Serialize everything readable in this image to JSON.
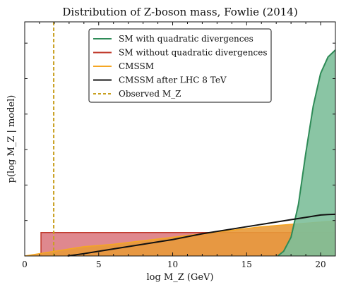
{
  "chart_data": {
    "type": "area",
    "title": "Distribution of Z-boson mass, Fowlie (2014)",
    "xlabel": "log M_Z (GeV)",
    "ylabel": "p(log M_Z | model)",
    "xlim": [
      0,
      21
    ],
    "ylim": [
      0,
      1.0
    ],
    "x_ticks": [
      "0",
      "5",
      "10",
      "15",
      "20"
    ],
    "legend_position": "top-center",
    "grid": false,
    "series": [
      {
        "name": "SM with quadratic divergences",
        "kind": "filled-area",
        "color": "#2e8b57",
        "fill": "#7dbf9a",
        "x": [
          17.1,
          17.5,
          18.0,
          18.5,
          19.0,
          19.5,
          20.0,
          20.5,
          21.0
        ],
        "y": [
          0.0,
          0.02,
          0.08,
          0.22,
          0.44,
          0.64,
          0.78,
          0.85,
          0.88
        ]
      },
      {
        "name": "SM without quadratic divergences",
        "kind": "filled-area",
        "color": "#c0392b",
        "fill": "#d9737a",
        "x": [
          1.1,
          1.1,
          21.0,
          21.0
        ],
        "y": [
          0.0,
          0.1,
          0.1,
          0.0
        ]
      },
      {
        "name": "CMSSM",
        "kind": "filled-area",
        "color": "#f5a623",
        "fill": "#e89a3a",
        "x": [
          0.0,
          2.0,
          4.0,
          6.0,
          8.0,
          10.0,
          12.0,
          14.0,
          16.0,
          18.0,
          20.0,
          21.0
        ],
        "y": [
          0.0,
          0.02,
          0.04,
          0.05,
          0.065,
          0.08,
          0.095,
          0.11,
          0.125,
          0.135,
          0.145,
          0.15
        ]
      },
      {
        "name": "CMSSM after LHC 8 TeV",
        "kind": "line",
        "color": "#111111",
        "x": [
          2.9,
          4.0,
          6.0,
          8.0,
          10.0,
          12.0,
          14.0,
          16.0,
          18.0,
          19.0,
          20.0,
          20.5,
          21.0
        ],
        "y": [
          0.0,
          0.01,
          0.03,
          0.05,
          0.07,
          0.095,
          0.115,
          0.135,
          0.155,
          0.165,
          0.175,
          0.177,
          0.178
        ]
      },
      {
        "name": "Observed M_Z",
        "kind": "vline",
        "color": "#c8a020",
        "x": 1.96
      }
    ]
  }
}
